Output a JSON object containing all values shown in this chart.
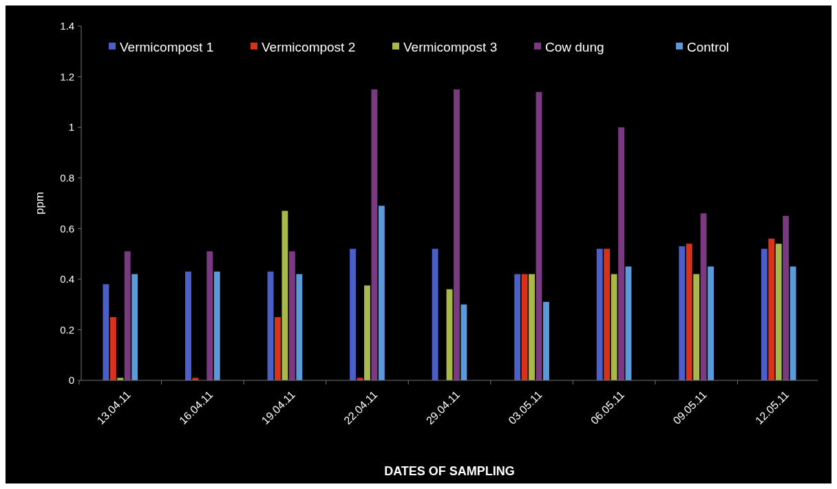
{
  "chart_data": {
    "type": "bar",
    "xlabel": "DATES OF SAMPLING",
    "ylabel": "ppm",
    "categories": [
      "13.04.11",
      "16.04.11",
      "19.04.11",
      "22.04.11",
      "29.04.11",
      "03.05.11",
      "06.05.11",
      "09.05.11",
      "12.05.11"
    ],
    "series": [
      {
        "name": "Vermicompost 1",
        "color": "#4a5fc8",
        "values": [
          0.38,
          0.43,
          0.43,
          0.52,
          0.52,
          0.42,
          0.52,
          0.53,
          0.52
        ]
      },
      {
        "name": "Vermicompost 2",
        "color": "#d8321a",
        "values": [
          0.25,
          0.01,
          0.25,
          0.01,
          0,
          0.42,
          0.52,
          0.54,
          0.56
        ]
      },
      {
        "name": "Vermicompost 3",
        "color": "#a8b84a",
        "values": [
          0.01,
          0,
          0.67,
          0.375,
          0.36,
          0.42,
          0.42,
          0.42,
          0.54
        ]
      },
      {
        "name": "Cow dung",
        "color": "#7a3a80",
        "values": [
          0.51,
          0.51,
          0.51,
          1.15,
          1.15,
          1.14,
          1.0,
          0.66,
          0.65
        ]
      },
      {
        "name": "Control",
        "color": "#5a9ad8",
        "values": [
          0.42,
          0.43,
          0.42,
          0.69,
          0.3,
          0.31,
          0.45,
          0.45,
          0.45
        ]
      }
    ],
    "ylim": [
      0,
      1.4
    ],
    "yticks": [
      0,
      0.2,
      0.4,
      0.6,
      0.8,
      1,
      1.2,
      1.4
    ],
    "grid": false,
    "legend": "top"
  }
}
